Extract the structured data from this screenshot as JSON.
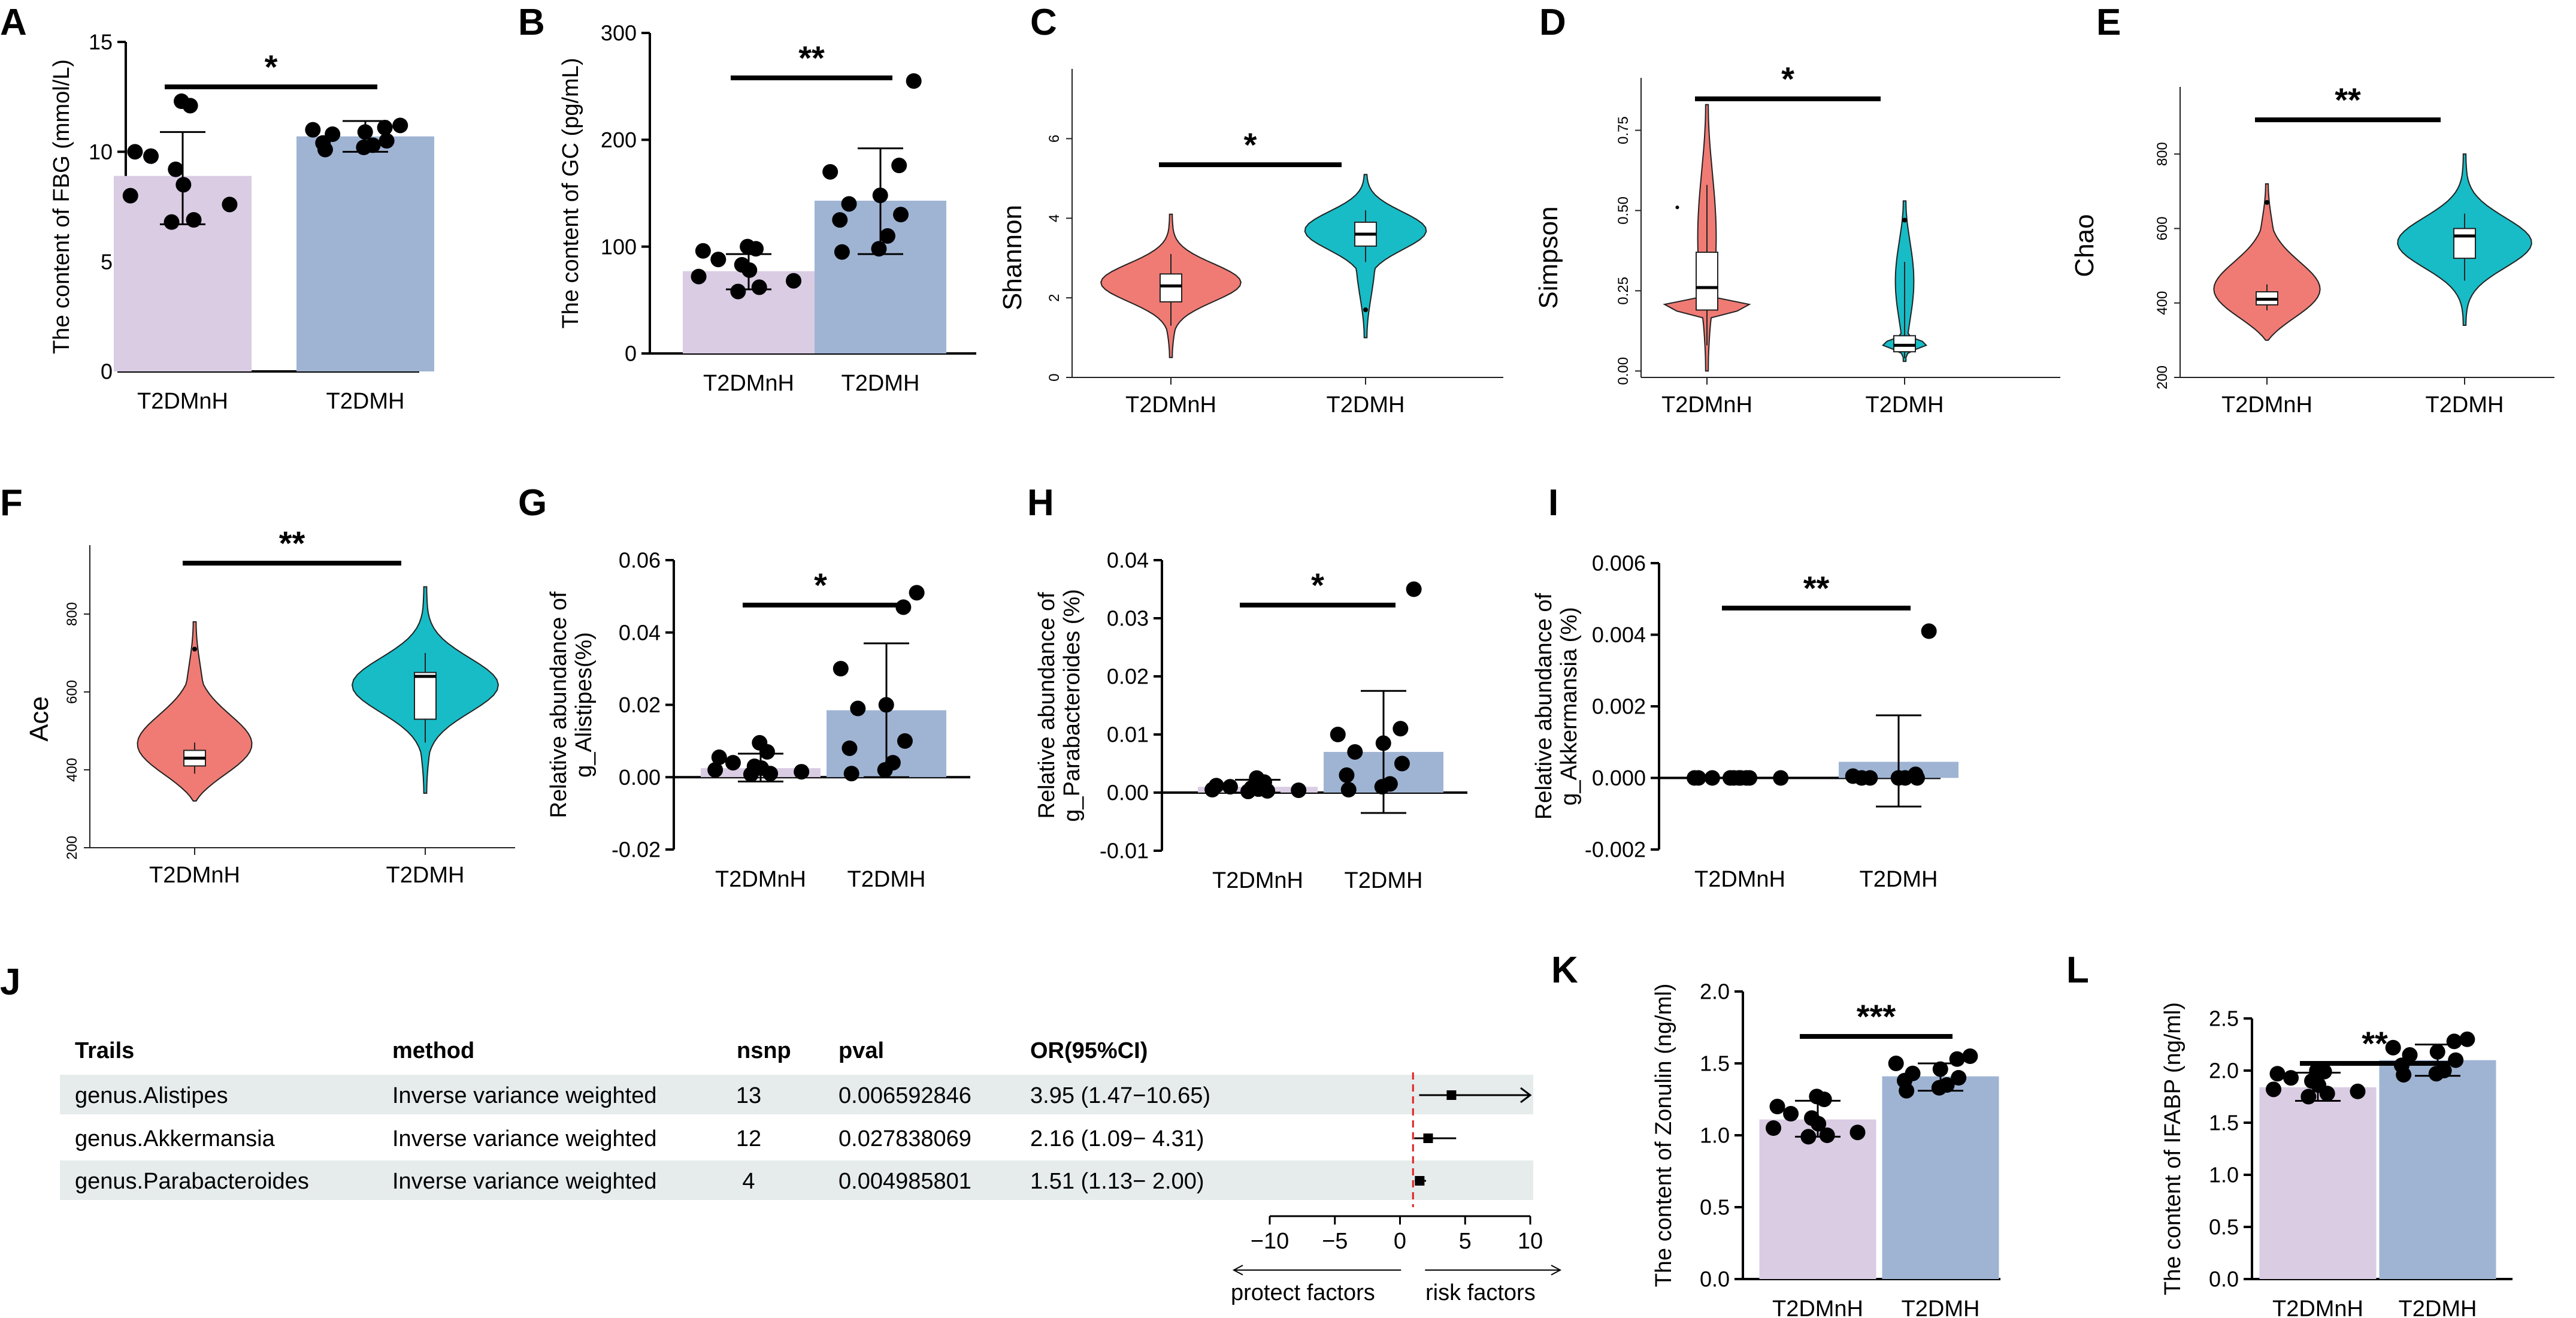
{
  "figure": {
    "colors": {
      "lavender": "#d9cce3",
      "steelblue": "#9fb4d3",
      "coral": "#f07b74",
      "teal": "#17bcc6",
      "forest_band": "#e6ebeb",
      "ci_line": "#e02020"
    }
  },
  "chart_data": [
    {
      "id": "A",
      "type": "bar",
      "letter": "A",
      "categories": [
        "T2DMnH",
        "T2DMH"
      ],
      "values": [
        8.9,
        10.7
      ],
      "err_low": [
        6.7,
        10.0
      ],
      "err_high": [
        10.9,
        11.4
      ],
      "points": [
        [
          12.3,
          12.1,
          10.0,
          9.8,
          9.2,
          8.5,
          8.0,
          7.6,
          6.8,
          6.9
        ],
        [
          11.2,
          11.0,
          11.1,
          10.9,
          10.8,
          10.5,
          10.3,
          10.2,
          10.1,
          10.4
        ]
      ],
      "ylim": [
        0,
        15
      ],
      "yticks": [
        "0",
        "5",
        "10",
        "15"
      ],
      "ylabel": "The content of FBG (mmol/L)",
      "significance": "*"
    },
    {
      "id": "B",
      "type": "bar",
      "letter": "B",
      "categories": [
        "T2DMnH",
        "T2DMH"
      ],
      "values": [
        77,
        143
      ],
      "err_low": [
        60,
        93
      ],
      "err_high": [
        93,
        192
      ],
      "points": [
        [
          100,
          98,
          96,
          88,
          83,
          78,
          72,
          68,
          58,
          62
        ],
        [
          255,
          176,
          170,
          148,
          140,
          130,
          125,
          110,
          98,
          95
        ]
      ],
      "ylim": [
        0,
        300
      ],
      "yticks": [
        "0",
        "100",
        "200",
        "300"
      ],
      "ylabel": "The content of GC (pg/mL)",
      "significance": "**"
    },
    {
      "id": "C",
      "type": "violin",
      "letter": "C",
      "categories": [
        "T2DMnH",
        "T2DMH"
      ],
      "ylim": [
        0,
        7
      ],
      "yticks": [
        "0",
        "2",
        "4",
        "6"
      ],
      "ylabel": "Shannon",
      "groups": [
        {
          "median": 2.3,
          "q1": 1.9,
          "q3": 2.6,
          "whisker_low": 1.3,
          "whisker_high": 3.1,
          "min": 0.5,
          "max": 4.1,
          "mode": 2.4,
          "spread": 0.8,
          "outliers": []
        },
        {
          "median": 3.6,
          "q1": 3.3,
          "q3": 3.9,
          "whisker_low": 2.9,
          "whisker_high": 4.2,
          "min": 1.0,
          "max": 5.1,
          "mode": 3.8,
          "spread": 0.7,
          "outliers": [
            1.7
          ]
        }
      ],
      "significance": "*"
    },
    {
      "id": "D",
      "type": "violin",
      "letter": "D",
      "categories": [
        "T2DMnH",
        "T2DMH"
      ],
      "ylim": [
        -0.02,
        0.82
      ],
      "yticks": [
        "0.00",
        "0.25",
        "0.50",
        "0.75"
      ],
      "ylabel": "Simpson",
      "groups": [
        {
          "median": 0.26,
          "q1": 0.19,
          "q3": 0.37,
          "whisker_low": 0.08,
          "whisker_high": 0.58,
          "min": 0.0,
          "max": 0.83,
          "mode": 0.2,
          "spread": 0.1,
          "outliers": []
        },
        {
          "median": 0.08,
          "q1": 0.06,
          "q3": 0.11,
          "whisker_low": 0.04,
          "whisker_high": 0.34,
          "min": 0.03,
          "max": 0.53,
          "mode": 0.08,
          "spread": 0.15,
          "outliers": [
            0.47
          ]
        }
      ],
      "stray_point": [
        0.45,
        0.51
      ],
      "significance": "*"
    },
    {
      "id": "E",
      "type": "violin",
      "letter": "E",
      "categories": [
        "T2DMnH",
        "T2DMH"
      ],
      "ylim": [
        200,
        900
      ],
      "yticks": [
        "200",
        "400",
        "600",
        "800"
      ],
      "ylabel": "Chao",
      "groups": [
        {
          "median": 410,
          "q1": 395,
          "q3": 430,
          "whisker_low": 380,
          "whisker_high": 450,
          "min": 300,
          "max": 720,
          "mode": 400,
          "spread": 1.2,
          "outliers": [
            670
          ]
        },
        {
          "median": 580,
          "q1": 520,
          "q3": 600,
          "whisker_low": 460,
          "whisker_high": 640,
          "min": 340,
          "max": 800,
          "mode": 560,
          "spread": 0.9,
          "outliers": []
        }
      ],
      "significance": "**"
    },
    {
      "id": "F",
      "type": "violin",
      "letter": "F",
      "categories": [
        "T2DMnH",
        "T2DMH"
      ],
      "ylim": [
        200,
        900
      ],
      "yticks": [
        "200",
        "400",
        "600",
        "800"
      ],
      "ylabel": "Ace",
      "groups": [
        {
          "median": 430,
          "q1": 410,
          "q3": 450,
          "whisker_low": 390,
          "whisker_high": 470,
          "min": 320,
          "max": 780,
          "mode": 430,
          "spread": 1.1,
          "outliers": [
            710
          ]
        },
        {
          "median": 640,
          "q1": 530,
          "q3": 650,
          "whisker_low": 470,
          "whisker_high": 700,
          "min": 340,
          "max": 870,
          "mode": 620,
          "spread": 0.8,
          "outliers": []
        }
      ],
      "significance": "**"
    },
    {
      "id": "G",
      "type": "bar",
      "letter": "G",
      "categories": [
        "T2DMnH",
        "T2DMH"
      ],
      "values": [
        0.0025,
        0.0185
      ],
      "err_low": [
        -0.0012,
        0.0
      ],
      "err_high": [
        0.0065,
        0.037
      ],
      "points": [
        [
          0.0095,
          0.007,
          0.0055,
          0.004,
          0.003,
          0.002,
          0.0015,
          0.001,
          0.0008,
          0.0025
        ],
        [
          0.051,
          0.047,
          0.03,
          0.02,
          0.019,
          0.01,
          0.008,
          0.004,
          0.002,
          0.001
        ]
      ],
      "ylim": [
        -0.02,
        0.06
      ],
      "yticks": [
        "-0.02",
        "0.00",
        "0.02",
        "0.04",
        "0.06"
      ],
      "ylabel_lines": [
        "Relative abundance of",
        "g_Alistipes(%)"
      ],
      "significance": "*"
    },
    {
      "id": "H",
      "type": "bar",
      "letter": "H",
      "categories": [
        "T2DMnH",
        "T2DMH"
      ],
      "values": [
        0.001,
        0.007
      ],
      "err_low": [
        0.0,
        -0.0035
      ],
      "err_high": [
        0.0022,
        0.0175
      ],
      "points": [
        [
          0.0025,
          0.0018,
          0.0012,
          0.001,
          0.0008,
          0.0006,
          0.0005,
          0.0004,
          0.0003,
          0.0002
        ],
        [
          0.035,
          0.011,
          0.01,
          0.0085,
          0.007,
          0.005,
          0.003,
          0.0015,
          0.001,
          0.0005
        ]
      ],
      "ylim": [
        -0.01,
        0.04
      ],
      "yticks": [
        "-0.01",
        "0.00",
        "0.01",
        "0.02",
        "0.03",
        "0.04"
      ],
      "ylabel_lines": [
        "Relative abundance of",
        "g_Parabacteroides (%)"
      ],
      "significance": "*"
    },
    {
      "id": "I",
      "type": "bar",
      "letter": "I",
      "categories": [
        "T2DMnH",
        "T2DMH"
      ],
      "values": [
        0.0,
        0.00045
      ],
      "err_low": [
        0.0,
        -0.0008
      ],
      "err_high": [
        0.0,
        0.00175
      ],
      "points": [
        [
          0,
          0,
          0,
          0,
          0,
          0,
          0,
          0,
          0,
          0
        ],
        [
          0.0041,
          0.0001,
          5e-05,
          0.0,
          0.0,
          0.0,
          0.0,
          0.0
        ]
      ],
      "ylim": [
        -0.002,
        0.006
      ],
      "yticks": [
        "-0.002",
        "0.000",
        "0.002",
        "0.004",
        "0.006"
      ],
      "ylabel_lines": [
        "Relative abundance of",
        "g_Akkermansia (%)"
      ],
      "significance": "**"
    },
    {
      "id": "J",
      "type": "forest",
      "letter": "J",
      "headers": [
        "Trails",
        "method",
        "nsnp",
        "pval",
        "OR(95%CI)"
      ],
      "rows": [
        {
          "trait": "genus.Alistipes",
          "method": "Inverse variance weighted",
          "nsnp": "13",
          "pval": "0.006592846",
          "or_ci": "3.95 (1.47−10.65)",
          "or": 3.95,
          "lo": 1.47,
          "hi": 10.65,
          "arrow": true
        },
        {
          "trait": "genus.Akkermansia",
          "method": "Inverse variance weighted",
          "nsnp": "12",
          "pval": "0.027838069",
          "or_ci": "2.16 (1.09− 4.31)",
          "or": 2.16,
          "lo": 1.09,
          "hi": 4.31,
          "arrow": false
        },
        {
          "trait": "genus.Parabacteroides",
          "method": "Inverse variance weighted",
          "nsnp": "4",
          "pval": "0.004985801",
          "or_ci": "1.51 (1.13− 2.00)",
          "or": 1.51,
          "lo": 1.13,
          "hi": 2.0,
          "arrow": false
        }
      ],
      "xlim": [
        -10,
        10
      ],
      "xticks": [
        "−10",
        "−5",
        "0",
        "5",
        "10"
      ],
      "xtick_values": [
        -10,
        -5,
        0,
        5,
        10
      ],
      "refline": 1,
      "left_label": "protect factors",
      "right_label": "risk factors"
    },
    {
      "id": "K",
      "type": "bar",
      "letter": "K",
      "categories": [
        "T2DMnH",
        "T2DMH"
      ],
      "values": [
        1.11,
        1.41
      ],
      "err_low": [
        0.99,
        1.31
      ],
      "err_high": [
        1.24,
        1.5
      ],
      "points": [
        [
          1.27,
          1.25,
          1.2,
          1.15,
          1.12,
          1.08,
          1.05,
          1.02,
          0.99,
          1.0
        ],
        [
          1.55,
          1.53,
          1.5,
          1.46,
          1.43,
          1.4,
          1.38,
          1.35,
          1.33,
          1.31
        ]
      ],
      "ylim": [
        0,
        2.0
      ],
      "yticks": [
        "0.0",
        "0.5",
        "1.0",
        "1.5",
        "2.0"
      ],
      "ylabel": "The content of Zonulin (ng/ml)",
      "significance": "***"
    },
    {
      "id": "L",
      "type": "bar",
      "letter": "L",
      "categories": [
        "T2DMnH",
        "T2DMH"
      ],
      "values": [
        1.84,
        2.1
      ],
      "err_low": [
        1.71,
        1.95
      ],
      "err_high": [
        1.98,
        2.25
      ],
      "points": [
        [
          2.0,
          1.99,
          1.97,
          1.93,
          1.9,
          1.86,
          1.82,
          1.8,
          1.78,
          1.75
        ],
        [
          2.3,
          2.28,
          2.22,
          2.18,
          2.15,
          2.1,
          2.05,
          2.0,
          1.96,
          1.97
        ]
      ],
      "ylim": [
        0,
        2.5
      ],
      "yticks": [
        "0.0",
        "0.5",
        "1.0",
        "1.5",
        "2.0",
        "2.5"
      ],
      "ylabel": "The content of IFABP (ng/ml)",
      "significance": "**"
    }
  ]
}
